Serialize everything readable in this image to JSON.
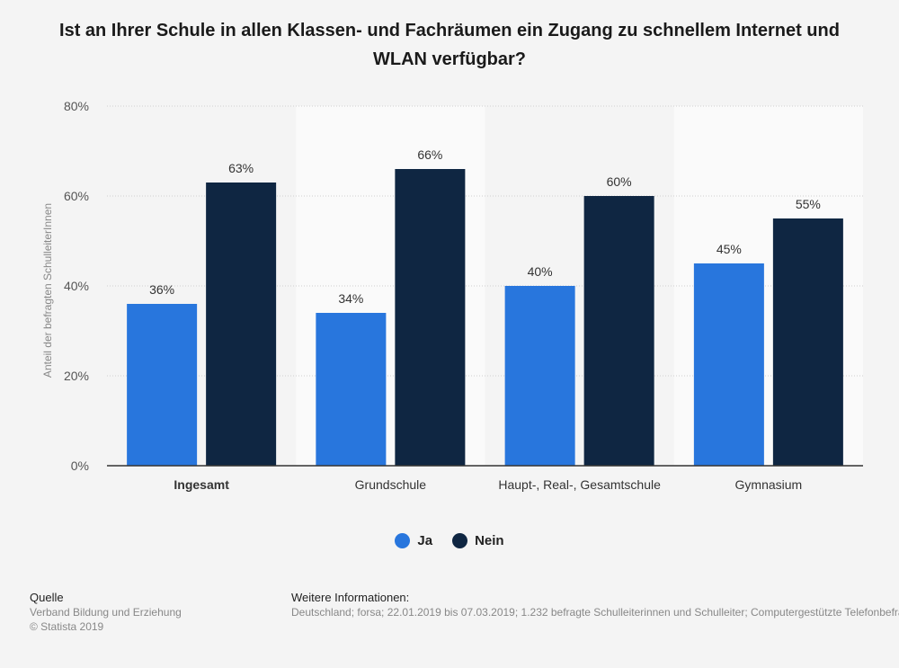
{
  "title": "Ist an Ihrer Schule in allen Klassen- und Fachräumen ein Zugang zu schnellem Internet und WLAN verfügbar?",
  "chart_data": {
    "type": "bar",
    "title": "Ist an Ihrer Schule in allen Klassen- und Fachräumen ein Zugang zu schnellem Internet und WLAN verfügbar?",
    "categories": [
      "Ingesamt",
      "Grundschule",
      "Haupt-, Real-, Gesamtschule",
      "Gymnasium"
    ],
    "series": [
      {
        "name": "Ja",
        "values": [
          36,
          34,
          40,
          45
        ],
        "color": "#2876dd"
      },
      {
        "name": "Nein",
        "values": [
          63,
          66,
          60,
          55
        ],
        "color": "#0f2642"
      }
    ],
    "value_labels": [
      [
        "36%",
        "34%",
        "40%",
        "45%"
      ],
      [
        "63%",
        "66%",
        "60%",
        "55%"
      ]
    ],
    "ylabel": "Anteil der befragten SchulleiterInnen",
    "ylim": [
      0,
      80
    ],
    "yticks": [
      0,
      20,
      40,
      60,
      80
    ],
    "ytick_labels": [
      "0%",
      "20%",
      "40%",
      "60%",
      "80%"
    ],
    "grid": true,
    "legend": "bottom-center"
  },
  "legend": {
    "items": [
      {
        "label": "Ja",
        "color": "#2876dd"
      },
      {
        "label": "Nein",
        "color": "#0f2642"
      }
    ]
  },
  "footer": {
    "source_heading": "Quelle",
    "source_lines": [
      "Verband Bildung und Erziehung",
      "© Statista 2019"
    ],
    "info_heading": "Weitere Informationen:",
    "info_text": "Deutschland; forsa; 22.01.2019 bis 07.03.2019; 1.232 befragte Schulleiterinnen und Schulleiter; Computergestützte Telefonbefragung"
  }
}
